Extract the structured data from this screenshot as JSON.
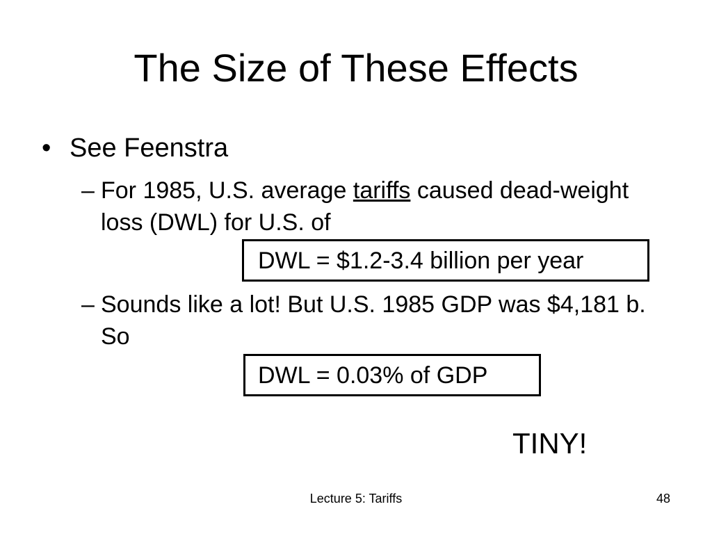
{
  "slide": {
    "title": "The Size of These Effects",
    "bullet_symbol": "•",
    "bullet1": "See Feenstra",
    "dash_symbol": "–",
    "sub1": {
      "before": "For 1985, U.S. average ",
      "underlined": "tariffs",
      "after": " caused dead-weight loss (DWL) for U.S. of"
    },
    "box1": "DWL = $1.2-3.4 billion per year",
    "sub2": "Sounds like a lot!  But U.S. 1985 GDP was $4,181 b.  So",
    "box2": "DWL = 0.03% of GDP",
    "callout": "TINY!"
  },
  "footer": {
    "title": "Lecture 5: Tariffs",
    "page_number": "48"
  }
}
